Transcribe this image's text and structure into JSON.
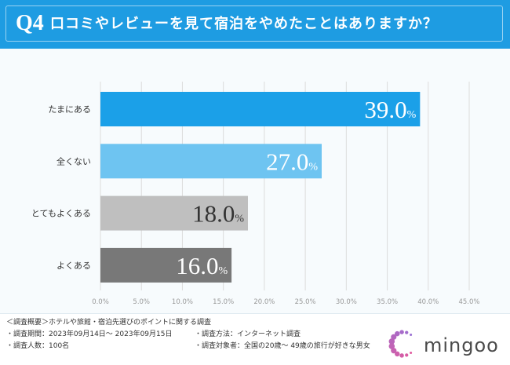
{
  "header": {
    "q_label": "Q4",
    "title": "口コミやレビューを見て宿泊をやめたことはありますか？",
    "color": "#1e9ce2"
  },
  "chart_data": {
    "type": "bar",
    "orientation": "horizontal",
    "categories": [
      "たまにある",
      "全くない",
      "とてもよくある",
      "よくある"
    ],
    "values": [
      39.0,
      27.0,
      18.0,
      16.0
    ],
    "value_unit": "%",
    "xlim": [
      0,
      45
    ],
    "xticks": [
      0,
      5,
      10,
      15,
      20,
      25,
      30,
      35,
      40,
      45
    ],
    "xtick_labels": [
      "0.0%",
      "5.0%",
      "10.0%",
      "15.0%",
      "20.0%",
      "25.0%",
      "30.0%",
      "35.0%",
      "40.0%",
      "45.0%"
    ],
    "colors": [
      "#1ba0e8",
      "#6ec4f1",
      "#bfbfbf",
      "#787878"
    ],
    "label_colors": [
      "#ffffff",
      "#ffffff",
      "#333333",
      "#ffffff"
    ],
    "grid": "vertical",
    "title": "",
    "xlabel": "",
    "ylabel": ""
  },
  "footer": {
    "overview": "＜調査概要＞ホテルや旅館・宿泊先選びのポイントに関する調査",
    "period": "・調査期間：2023年09月14日～ 2023年09月15日",
    "method": "・調査方法：インターネット調査",
    "count": "・調査人数：100名",
    "target": "・調査対象者：全国の20歳～ 49歳の旅行が好きな男女"
  },
  "logo": {
    "icon": "dot-ring-logo-icon",
    "text": "mingoo",
    "colors": [
      "#9a6fd2",
      "#e05a9e"
    ]
  }
}
